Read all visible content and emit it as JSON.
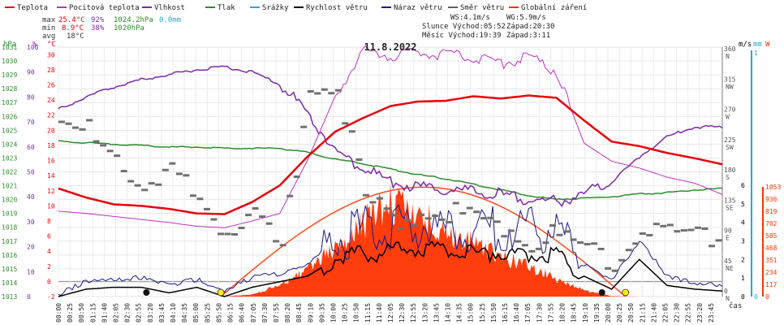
{
  "legend": [
    {
      "label": "Teplota",
      "color": "#e8000b"
    },
    {
      "label": "Pocitová teplota",
      "color": "#c030c0"
    },
    {
      "label": "Vlhkost",
      "color": "#7d2aa8"
    },
    {
      "label": "Tlak",
      "color": "#2e8b2e"
    },
    {
      "label": "Srážky",
      "color": "#2aa6d6"
    },
    {
      "label": "Rychlost větru",
      "color": "#000000"
    },
    {
      "label": "Náraz větru",
      "color": "#1a1a8c"
    },
    {
      "label": "Směr větru",
      "color": "#606060"
    },
    {
      "label": "Globální záření",
      "color": "#ff3300"
    }
  ],
  "stats": {
    "max_label": "max",
    "max_temp": "25.4°C",
    "max_hum": "92%",
    "max_press": "1024.2hPa",
    "max_rain": "0.0mm",
    "min_label": "min",
    "min_temp": "8.9°C",
    "min_hum": "38%",
    "min_press": "1020hPa",
    "avg_label": "avg",
    "avg_temp": "18°C"
  },
  "info": {
    "ws": "WS:4.1m/s",
    "wg": "WG:5.9m/s",
    "slunce": "Slunce Východ:05:52",
    "slunce_zapad": "Západ:20:30",
    "mesic": "Měsíc  Východ:19:39",
    "mesic_zapad": "Západ:3:11"
  },
  "date_title": "11.8.2022",
  "units": {
    "hpa": "hPa",
    "pct": "%",
    "degc": "°C",
    "ms": "m/s",
    "mm": "mm",
    "w": "W",
    "cas": "čas"
  },
  "chart_data": {
    "type": "line",
    "title": "11.8.2022",
    "x_label": "čas",
    "x_ticks": [
      "00:00",
      "00:25",
      "00:50",
      "01:15",
      "01:40",
      "02:05",
      "02:30",
      "02:55",
      "03:20",
      "03:45",
      "04:10",
      "04:35",
      "05:00",
      "05:25",
      "05:50",
      "06:15",
      "06:40",
      "07:05",
      "07:30",
      "07:55",
      "08:20",
      "08:45",
      "09:10",
      "09:35",
      "10:00",
      "10:25",
      "10:50",
      "11:15",
      "11:40",
      "12:05",
      "12:30",
      "12:55",
      "13:20",
      "13:45",
      "14:10",
      "14:35",
      "15:00",
      "15:25",
      "15:50",
      "16:15",
      "16:40",
      "17:05",
      "17:30",
      "17:55",
      "18:20",
      "18:45",
      "19:10",
      "19:35",
      "20:00",
      "20:25",
      "20:50",
      "21:15",
      "21:40",
      "22:05",
      "22:30",
      "22:55",
      "23:20",
      "23:45"
    ],
    "axes": {
      "pressure_hpa": {
        "range": [
          1013,
          1031
        ],
        "ticks": [
          "1013",
          "1014",
          "1015",
          "1016",
          "1017",
          "1018",
          "1019",
          "1020",
          "1021",
          "1022",
          "1023",
          "1024",
          "1025",
          "1026",
          "1027",
          "1028",
          "1029",
          "1030",
          "1031"
        ]
      },
      "humidity_pct": {
        "range": [
          0,
          100
        ],
        "ticks": [
          "0",
          "10",
          "20",
          "30",
          "40",
          "50",
          "60",
          "70",
          "80",
          "90",
          "100"
        ]
      },
      "temperature_c": {
        "range": [
          -2,
          31
        ],
        "ticks": [
          "-2",
          "0",
          "2",
          "4",
          "6",
          "8",
          "10",
          "12",
          "14",
          "16",
          "18",
          "20",
          "22",
          "24",
          "26",
          "28",
          "30"
        ]
      },
      "wind_direction": {
        "ticks": [
          {
            "deg": "0",
            "dir": "N"
          },
          {
            "deg": "45",
            "dir": "NE"
          },
          {
            "deg": "90",
            "dir": "E"
          },
          {
            "deg": "135",
            "dir": "SE"
          },
          {
            "deg": "180",
            "dir": "S"
          },
          {
            "deg": "225",
            "dir": "SW"
          },
          {
            "deg": "270",
            "dir": "W"
          },
          {
            "deg": "315",
            "dir": "NW"
          },
          {
            "deg": "360",
            "dir": "N"
          }
        ]
      },
      "wind_ms": {
        "range": [
          0,
          6
        ],
        "ticks": [
          "0",
          "1",
          "2",
          "3",
          "4",
          "5",
          "6"
        ]
      },
      "rain_mm": {
        "ticks": [
          "0",
          "1"
        ]
      },
      "radiation_w": {
        "ticks": [
          "0",
          "117",
          "234",
          "351",
          "468",
          "585",
          "702",
          "819",
          "936",
          "1053"
        ]
      }
    },
    "hours": [
      0,
      1,
      2,
      3,
      4,
      5,
      6,
      7,
      8,
      9,
      10,
      11,
      12,
      13,
      14,
      15,
      16,
      17,
      18,
      19,
      20,
      21,
      22,
      23,
      24
    ],
    "series": [
      {
        "name": "Teplota",
        "unit": "°C",
        "values": [
          12.3,
          11.1,
          10.2,
          10.0,
          9.6,
          9.0,
          8.9,
          10.5,
          12.7,
          16.5,
          19.8,
          21.6,
          23.2,
          23.8,
          23.9,
          24.5,
          24.2,
          24.6,
          24.3,
          21.3,
          18.5,
          17.9,
          17.0,
          16.3,
          15.5
        ]
      },
      {
        "name": "Pocitová teplota",
        "unit": "°C",
        "values": [
          9.3,
          9.0,
          8.6,
          8.2,
          7.8,
          7.3,
          7.1,
          8.0,
          9.0,
          16.0,
          24.5,
          30.5,
          29.9,
          30.3,
          30.0,
          29.5,
          28.8,
          29.8,
          27.8,
          18.3,
          15.9,
          15.0,
          13.8,
          13.0,
          11.5
        ]
      },
      {
        "name": "Vlhkost",
        "unit": "%",
        "values": [
          75,
          80,
          84,
          87,
          89,
          91,
          92,
          90,
          85,
          74,
          58,
          52,
          46,
          44,
          43,
          42,
          41,
          39,
          38,
          41,
          46,
          56,
          64,
          68,
          68
        ]
      },
      {
        "name": "Tlak",
        "unit": "hPa",
        "values": [
          1024.2,
          1024.1,
          1024.0,
          1023.9,
          1023.8,
          1023.8,
          1023.7,
          1023.7,
          1023.7,
          1023.4,
          1022.9,
          1022.6,
          1022.2,
          1021.8,
          1021.5,
          1021.1,
          1020.7,
          1020.3,
          1020.0,
          1020.1,
          1020.2,
          1020.4,
          1020.5,
          1020.7,
          1020.8
        ]
      },
      {
        "name": "Rychlost větru",
        "unit": "m/s",
        "values": [
          0,
          0.4,
          0.5,
          0.5,
          0.2,
          0.5,
          0,
          0.5,
          0.8,
          1.1,
          2.0,
          2.3,
          2.4,
          2.6,
          2.5,
          2.3,
          2.4,
          2.3,
          2.2,
          1.1,
          0.4,
          2.0,
          0.6,
          0.4,
          0.3
        ]
      },
      {
        "name": "Náraz větru",
        "unit": "m/s",
        "values": [
          0,
          0.7,
          0.8,
          0.9,
          0.5,
          0.8,
          0.2,
          0.9,
          1.1,
          1.6,
          3.0,
          3.6,
          3.8,
          3.9,
          3.6,
          3.5,
          3.7,
          3.7,
          3.5,
          1.6,
          0.8,
          2.9,
          1.0,
          0.6,
          0.5
        ]
      },
      {
        "name": "Směr větru",
        "unit": "°",
        "values": [
          240,
          240,
          205,
          145,
          175,
          140,
          90,
          110,
          65,
          310,
          310,
          140,
          110,
          120,
          120,
          105,
          100,
          75,
          85,
          65,
          50,
          95,
          85,
          85,
          85
        ]
      },
      {
        "name": "Globální záření",
        "unit": "W/m²",
        "values": [
          0,
          0,
          0,
          0,
          0,
          0,
          0,
          20,
          110,
          260,
          470,
          720,
          920,
          840,
          610,
          520,
          390,
          300,
          180,
          60,
          5,
          0,
          0,
          0,
          0
        ]
      },
      {
        "name": "Srážky",
        "unit": "mm",
        "values": [
          0,
          0,
          0,
          0,
          0,
          0,
          0,
          0,
          0,
          0,
          0,
          0,
          0,
          0,
          0,
          0,
          0,
          0,
          0,
          0,
          0,
          0,
          0,
          0,
          0
        ]
      }
    ],
    "clear_sky_radiation": {
      "sunrise_h": 5.87,
      "sunset_h": 20.5,
      "peak_w": 1050
    }
  }
}
